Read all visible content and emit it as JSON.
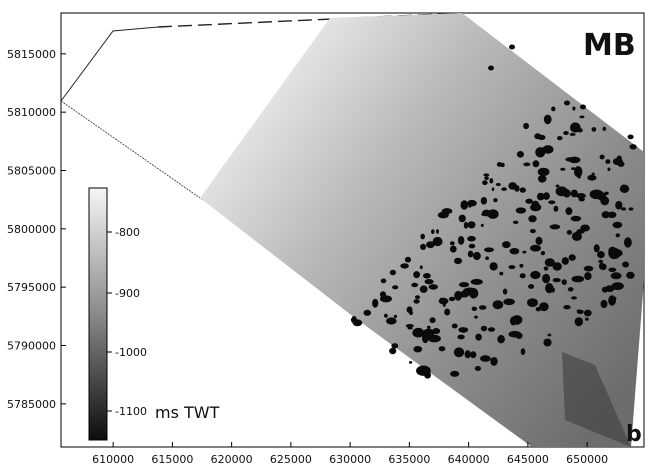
{
  "map": {
    "corner_label": "MB",
    "panel_label": "b",
    "x_axis": {
      "ticks": [
        "610000",
        "615000",
        "620000",
        "625000",
        "630000",
        "635000",
        "640000",
        "645000",
        "650000"
      ],
      "range": [
        605600,
        654800
      ]
    },
    "y_axis": {
      "ticks": [
        "5785000",
        "5790000",
        "5795000",
        "5800000",
        "5805000",
        "5810000",
        "5815000"
      ],
      "range": [
        5781300,
        5818500
      ]
    },
    "colorbar": {
      "unit": "ms TWT",
      "ticks": [
        "-800",
        "-900",
        "-1000",
        "-1100"
      ],
      "colors": [
        "#f4f4f4",
        "#111111"
      ]
    },
    "survey_area_color": "#9a9a9a",
    "feature_color": "#0a0a0a"
  }
}
